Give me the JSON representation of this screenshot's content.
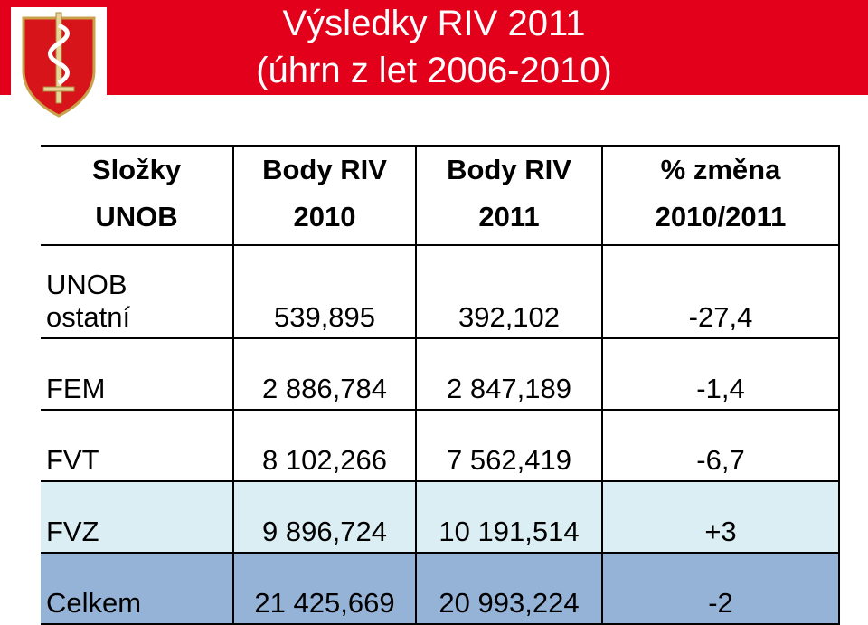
{
  "header": {
    "title_lines": [
      "Výsledky RIV 2011",
      "(úhrn z let 2006-2010)"
    ]
  },
  "table": {
    "columns": [
      [
        "Složky",
        "UNOB"
      ],
      [
        "Body RIV",
        "2010"
      ],
      [
        "Body RIV",
        "2011"
      ],
      [
        "% změna",
        "2010/2011"
      ]
    ],
    "rows": [
      [
        [
          "UNOB",
          "ostatní"
        ],
        "539,895",
        "392,102",
        "-27,4"
      ],
      [
        [
          "FEM"
        ],
        "2 886,784",
        "2 847,189",
        "-1,4"
      ],
      [
        [
          "FVT"
        ],
        "8 102,266",
        "7 562,419",
        "-6,7"
      ],
      [
        [
          "FVZ"
        ],
        "9 896,724",
        "10 191,514",
        "+3"
      ],
      [
        [
          "Celkem"
        ],
        "21 425,669",
        "20 993,224",
        "-2"
      ]
    ]
  }
}
